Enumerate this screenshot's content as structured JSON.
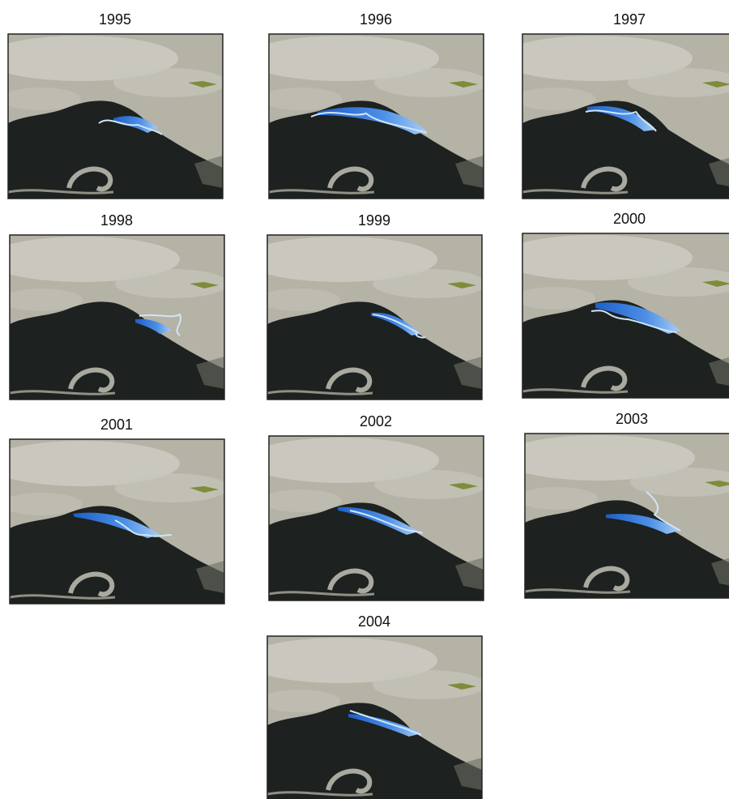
{
  "panels": [
    {
      "title": "1995"
    },
    {
      "title": "1996"
    },
    {
      "title": "1997"
    },
    {
      "title": "1998"
    },
    {
      "title": "1999"
    },
    {
      "title": "2000"
    },
    {
      "title": "2001"
    },
    {
      "title": "2002"
    },
    {
      "title": "2003"
    },
    {
      "title": "2004"
    }
  ]
}
